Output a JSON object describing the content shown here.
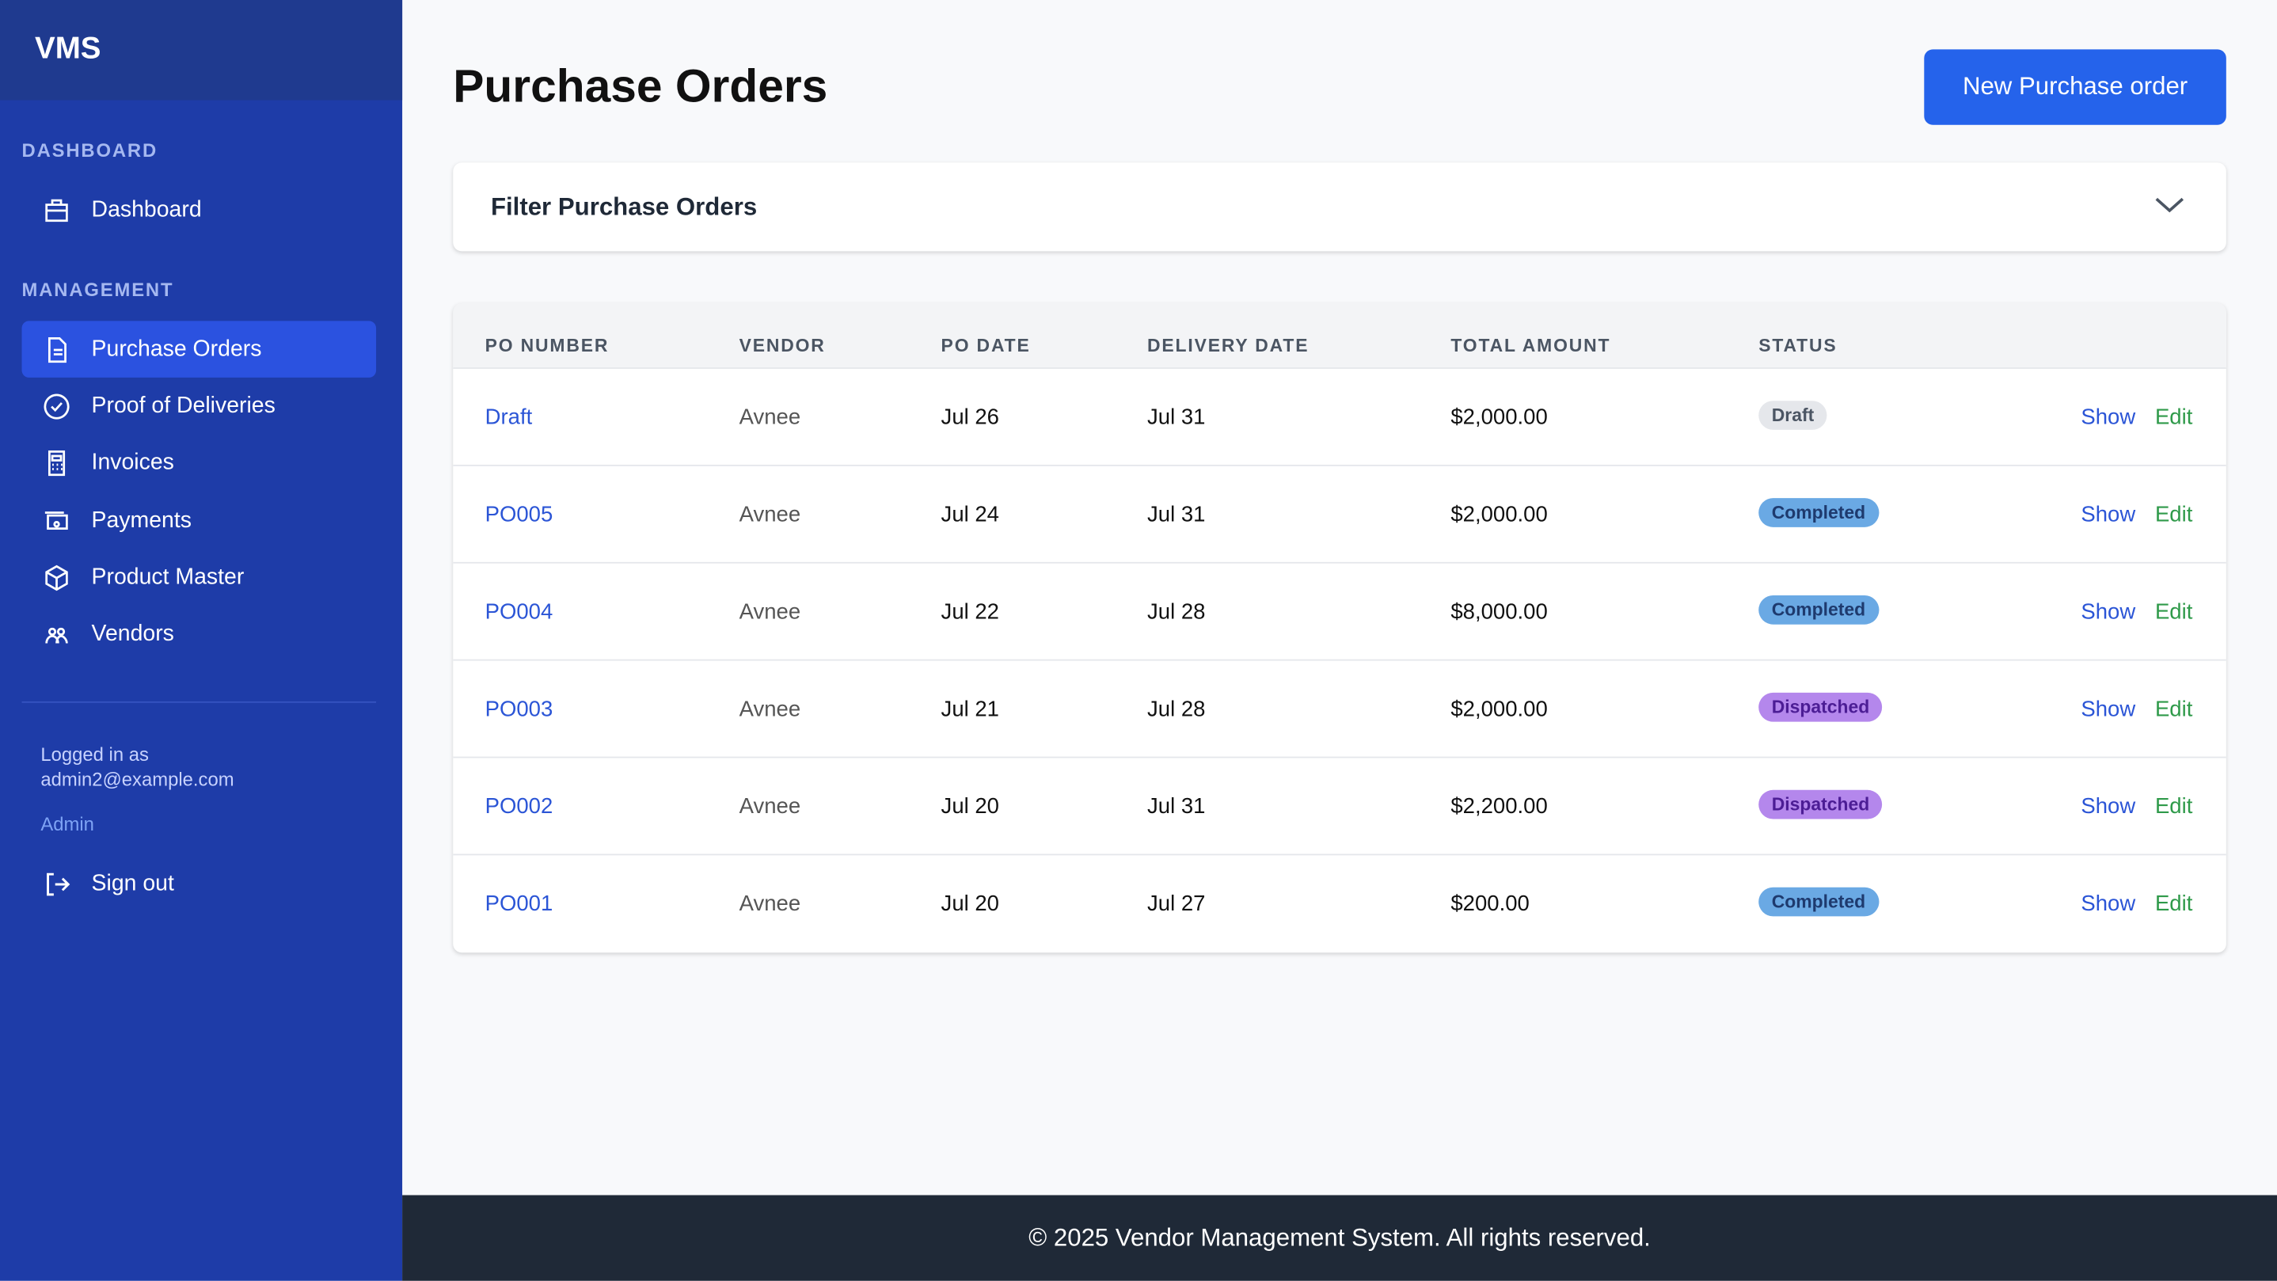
{
  "sidebar": {
    "brand": "VMS",
    "sections": [
      {
        "heading": "DASHBOARD",
        "items": [
          "Dashboard"
        ]
      },
      {
        "heading": "MANAGEMENT",
        "items": [
          "Purchase Orders",
          "Proof of Deliveries",
          "Invoices",
          "Payments",
          "Product Master",
          "Vendors"
        ]
      }
    ],
    "user": {
      "label": "Logged in as",
      "email": "admin2@example.com",
      "role": "Admin"
    },
    "sign_out": "Sign out"
  },
  "header": {
    "title": "Purchase Orders",
    "button": "New Purchase order"
  },
  "filter": {
    "title": "Filter Purchase Orders"
  },
  "table": {
    "columns": [
      "PO NUMBER",
      "VENDOR",
      "PO DATE",
      "DELIVERY DATE",
      "TOTAL AMOUNT",
      "STATUS"
    ],
    "rows": [
      [
        "Draft",
        "Avnee",
        "Jul 26",
        "Jul 31",
        "$2,000.00",
        "Draft"
      ],
      [
        "PO005",
        "Avnee",
        "Jul 24",
        "Jul 31",
        "$2,000.00",
        "Completed"
      ],
      [
        "PO004",
        "Avnee",
        "Jul 22",
        "Jul 28",
        "$8,000.00",
        "Completed"
      ],
      [
        "PO003",
        "Avnee",
        "Jul 21",
        "Jul 28",
        "$2,000.00",
        "Dispatched"
      ],
      [
        "PO002",
        "Avnee",
        "Jul 20",
        "Jul 31",
        "$2,200.00",
        "Dispatched"
      ],
      [
        "PO001",
        "Avnee",
        "Jul 20",
        "Jul 27",
        "$200.00",
        "Completed"
      ]
    ],
    "actions": [
      "Show",
      "Edit"
    ]
  },
  "footer": "© 2025 Vendor Management System. All rights reserved."
}
